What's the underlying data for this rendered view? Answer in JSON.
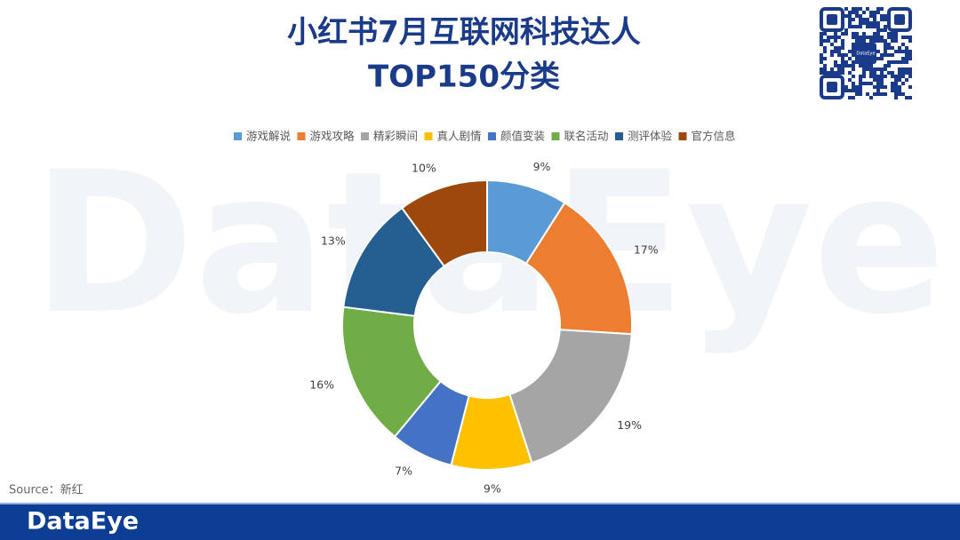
{
  "chart_data": {
    "type": "donut",
    "title": [
      "小红书7月互联网科技达人",
      "TOP150分类"
    ],
    "categories": [
      "游戏解说",
      "游戏攻略",
      "精彩瞬间",
      "真人剧情",
      "颜值变装",
      "联名活动",
      "测评体验",
      "官方信息"
    ],
    "values": [
      9,
      17,
      19,
      9,
      7,
      16,
      13,
      10
    ],
    "value_labels": [
      "9%",
      "17%",
      "19%",
      "9%",
      "7%",
      "16%",
      "13%",
      "10%"
    ],
    "colors": [
      "#5b9bd5",
      "#ed7d31",
      "#a5a5a5",
      "#ffc000",
      "#4472c4",
      "#70ad47",
      "#255e91",
      "#9e480e"
    ],
    "legend": "top"
  },
  "footer": {
    "source": "Source：新红",
    "brand": "DataEye"
  }
}
